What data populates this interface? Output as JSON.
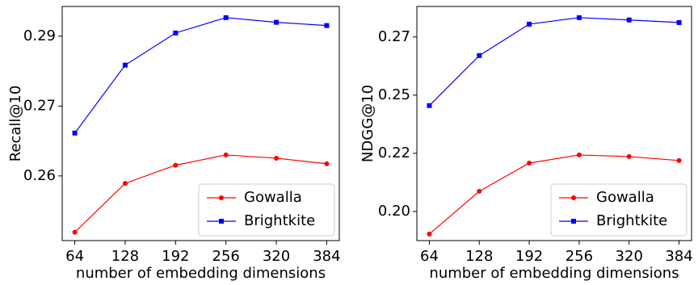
{
  "chart_data": [
    {
      "type": "line",
      "x_label": "number of embedding dimensions",
      "y_label": "Recall@10",
      "x": [
        64,
        128,
        192,
        256,
        320,
        384
      ],
      "xlim": [
        48,
        400
      ],
      "xticks": [
        64,
        128,
        192,
        256,
        320,
        384
      ],
      "ylim": [
        0.2436,
        0.2939
      ],
      "yticks": [
        {
          "value": 0.2575,
          "label": "0.26"
        },
        {
          "value": 0.2725,
          "label": "0.27"
        },
        {
          "value": 0.2875,
          "label": "0.29"
        }
      ],
      "legend": "lower right",
      "series": [
        {
          "name": "Gowalla",
          "color": "#ff0000",
          "marker": "circle",
          "values": [
            0.2454,
            0.2559,
            0.2598,
            0.262,
            0.2613,
            0.2601
          ]
        },
        {
          "name": "Brightkite",
          "color": "#0000ff",
          "marker": "square",
          "values": [
            0.2667,
            0.2813,
            0.2882,
            0.2915,
            0.2905,
            0.2898
          ]
        }
      ]
    },
    {
      "type": "line",
      "x_label": "number of embedding dimensions",
      "y_label": "NDGG@10",
      "x": [
        64,
        128,
        192,
        256,
        320,
        384
      ],
      "xlim": [
        48,
        400
      ],
      "xticks": [
        64,
        128,
        192,
        256,
        320,
        384
      ],
      "ylim": [
        0.185,
        0.2856
      ],
      "yticks": [
        {
          "value": 0.1975,
          "label": "0.20"
        },
        {
          "value": 0.2225,
          "label": "0.22"
        },
        {
          "value": 0.2475,
          "label": "0.25"
        },
        {
          "value": 0.2725,
          "label": "0.27"
        }
      ],
      "legend": "lower right",
      "series": [
        {
          "name": "Gowalla",
          "color": "#ff0000",
          "marker": "circle",
          "values": [
            0.1878,
            0.2062,
            0.2183,
            0.2218,
            0.2211,
            0.2194
          ]
        },
        {
          "name": "Brightkite",
          "color": "#0000ff",
          "marker": "square",
          "values": [
            0.243,
            0.2645,
            0.278,
            0.2808,
            0.2798,
            0.2787
          ]
        }
      ]
    }
  ]
}
